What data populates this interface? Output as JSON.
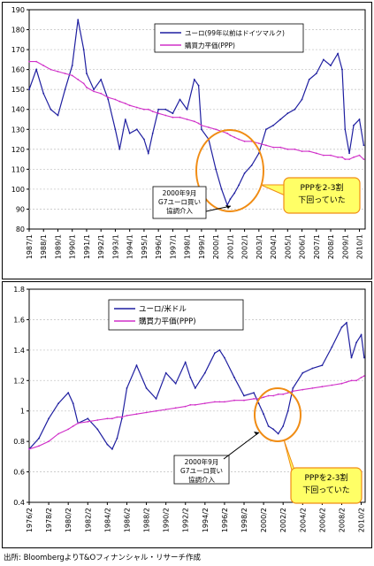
{
  "colors": {
    "series_main": "#1f1fa0",
    "series_ppp": "#d030c8",
    "callout_ring": "#f08c14",
    "callout_fill": "#ffff66",
    "grid": "#c8c8c8"
  },
  "source_note": "出所: BloombergよりT&Oフィナンシャル・リサーチ作成",
  "chart_data": [
    {
      "type": "line",
      "ylim": [
        80,
        190
      ],
      "yticks": [
        80,
        90,
        100,
        110,
        120,
        130,
        140,
        150,
        160,
        170,
        180,
        190
      ],
      "xticks": [
        "1987/1",
        "1988/1",
        "1989/1",
        "1990/1",
        "1991/1",
        "1992/1",
        "1993/1",
        "1994/1",
        "1995/1",
        "1996/1",
        "1997/1",
        "1998/1",
        "1999/1",
        "2000/1",
        "2001/1",
        "2002/1",
        "2003/1",
        "2004/1",
        "2005/1",
        "2006/1",
        "2007/1",
        "2008/1",
        "2009/1",
        "2010/1"
      ],
      "x": [
        1987.0,
        1987.5,
        1988.0,
        1988.5,
        1989.0,
        1989.5,
        1990.0,
        1990.4,
        1990.8,
        1991.0,
        1991.5,
        1992.0,
        1992.5,
        1993.0,
        1993.3,
        1993.7,
        1994.0,
        1994.5,
        1995.0,
        1995.3,
        1995.6,
        1996.0,
        1996.5,
        1997.0,
        1997.5,
        1998.0,
        1998.5,
        1998.8,
        1999.0,
        1999.5,
        2000.0,
        2000.4,
        2000.8,
        2001.0,
        2001.3,
        2001.6,
        2002.0,
        2002.5,
        2003.0,
        2003.5,
        2004.0,
        2004.5,
        2005.0,
        2005.5,
        2006.0,
        2006.5,
        2007.0,
        2007.5,
        2008.0,
        2008.5,
        2008.8,
        2009.0,
        2009.3,
        2009.6,
        2010.0,
        2010.3
      ],
      "series": [
        {
          "name": "ユーロ(99年以前はドイツマルク)",
          "values": [
            150,
            160,
            148,
            140,
            137,
            150,
            162,
            185,
            170,
            158,
            150,
            155,
            145,
            130,
            120,
            135,
            128,
            130,
            125,
            118,
            128,
            140,
            140,
            138,
            145,
            140,
            155,
            152,
            130,
            125,
            110,
            100,
            92,
            95,
            98,
            102,
            108,
            112,
            118,
            130,
            132,
            135,
            138,
            140,
            145,
            155,
            158,
            165,
            162,
            168,
            160,
            130,
            118,
            132,
            135,
            122
          ]
        },
        {
          "name": "購買力平価(PPP)",
          "values": [
            164,
            164,
            162,
            160,
            159,
            158,
            157,
            155,
            153,
            151,
            149,
            148,
            146,
            145,
            144,
            143,
            142,
            141,
            140,
            140,
            139,
            138,
            137,
            136,
            136,
            135,
            134,
            133,
            132,
            131,
            130,
            129,
            128,
            127,
            126,
            125,
            124,
            124,
            123,
            122,
            121,
            121,
            120,
            120,
            119,
            119,
            118,
            117,
            117,
            116,
            116,
            115,
            115,
            116,
            117,
            115
          ]
        }
      ],
      "annotations": [
        "2000年9月\nG7ユーロ買い\n協調介入",
        "PPPを2-3割\n下回っていた"
      ]
    },
    {
      "type": "line",
      "ylim": [
        0.4,
        1.8
      ],
      "yticks": [
        "0.4",
        "0.6",
        "0.8",
        "1",
        "1.2",
        "1.4",
        "1.6",
        "1.8"
      ],
      "xticks": [
        "1976/2",
        "1978/2",
        "1980/2",
        "1982/2",
        "1984/2",
        "1986/2",
        "1988/2",
        "1990/2",
        "1992/2",
        "1994/2",
        "1996/2",
        "1998/2",
        "2000/2",
        "2002/2",
        "2004/2",
        "2006/2",
        "2008/2",
        "2010/2"
      ],
      "x": [
        1976.0,
        1977.0,
        1978.0,
        1979.0,
        1980.0,
        1980.5,
        1981.0,
        1982.0,
        1983.0,
        1984.0,
        1984.5,
        1985.0,
        1985.5,
        1986.0,
        1987.0,
        1988.0,
        1989.0,
        1990.0,
        1991.0,
        1992.0,
        1992.5,
        1993.0,
        1994.0,
        1995.0,
        1995.5,
        1996.0,
        1997.0,
        1998.0,
        1999.0,
        1999.5,
        2000.0,
        2000.5,
        2001.0,
        2001.5,
        2002.0,
        2002.5,
        2003.0,
        2004.0,
        2005.0,
        2006.0,
        2007.0,
        2008.0,
        2008.5,
        2009.0,
        2009.5,
        2010.0,
        2010.3
      ],
      "series": [
        {
          "name": "ユーロ/米ドル",
          "values": [
            0.75,
            0.82,
            0.95,
            1.05,
            1.12,
            1.05,
            0.92,
            0.95,
            0.88,
            0.78,
            0.75,
            0.82,
            0.95,
            1.15,
            1.3,
            1.15,
            1.08,
            1.25,
            1.18,
            1.32,
            1.22,
            1.15,
            1.25,
            1.38,
            1.4,
            1.35,
            1.22,
            1.1,
            1.12,
            1.05,
            0.98,
            0.9,
            0.88,
            0.85,
            0.9,
            1.0,
            1.15,
            1.25,
            1.28,
            1.3,
            1.42,
            1.55,
            1.58,
            1.35,
            1.45,
            1.5,
            1.35
          ]
        },
        {
          "name": "購買力平価(PPP)",
          "values": [
            0.75,
            0.77,
            0.8,
            0.85,
            0.88,
            0.9,
            0.92,
            0.93,
            0.94,
            0.95,
            0.95,
            0.96,
            0.96,
            0.97,
            0.98,
            0.99,
            1.0,
            1.01,
            1.02,
            1.03,
            1.04,
            1.04,
            1.05,
            1.06,
            1.06,
            1.06,
            1.07,
            1.07,
            1.08,
            1.08,
            1.09,
            1.1,
            1.1,
            1.11,
            1.11,
            1.12,
            1.13,
            1.14,
            1.15,
            1.16,
            1.17,
            1.18,
            1.19,
            1.2,
            1.2,
            1.22,
            1.23
          ]
        }
      ],
      "annotations": [
        "2000年9月\nG7ユーロ買い\n協調介入",
        "PPPを2-3割\n下回っていた"
      ]
    }
  ]
}
